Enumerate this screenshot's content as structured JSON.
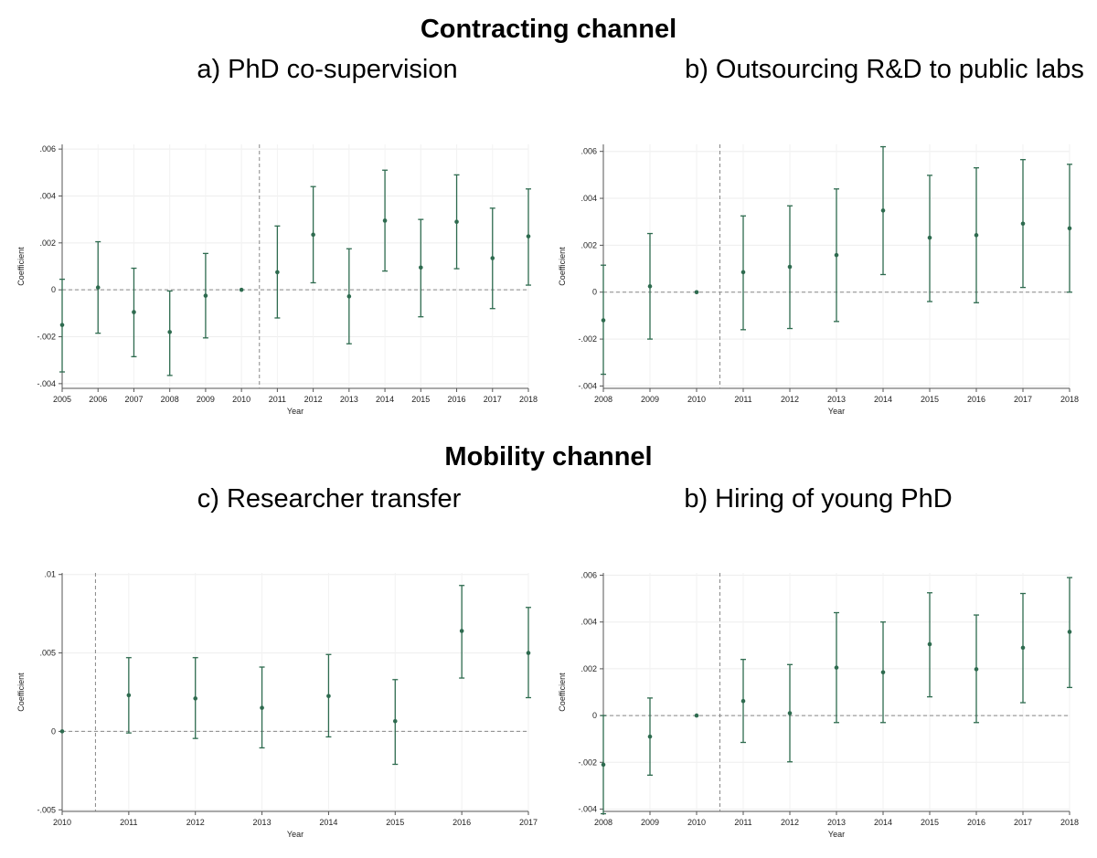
{
  "figure": {
    "section_1": "Contracting channel",
    "section_2": "Mobility channel"
  },
  "chart_data": [
    {
      "id": "a",
      "type": "scatter",
      "title": "a) PhD co-supervision",
      "xlabel": "Year",
      "ylabel": "Coefficient",
      "x": [
        2005,
        2006,
        2007,
        2008,
        2009,
        2010,
        2011,
        2012,
        2013,
        2014,
        2015,
        2016,
        2017,
        2018
      ],
      "y": [
        -0.0015,
        0.0001,
        -0.00095,
        -0.0018,
        -0.00025,
        0,
        0.00075,
        0.00235,
        -0.00028,
        0.00295,
        0.00095,
        0.0029,
        0.00135,
        0.00228
      ],
      "ci_low": [
        -0.0035,
        -0.00185,
        -0.00285,
        -0.00365,
        -0.00205,
        0,
        -0.0012,
        0.0003,
        -0.0023,
        0.0008,
        -0.00115,
        0.0009,
        -0.0008,
        0.0002
      ],
      "ci_high": [
        0.00045,
        0.00205,
        0.00092,
        -5e-05,
        0.00155,
        0,
        0.00272,
        0.0044,
        0.00175,
        0.0051,
        0.003,
        0.0049,
        0.00348,
        0.0043
      ],
      "xlim": [
        2005,
        2018
      ],
      "ylim": [
        -0.0042,
        0.0062
      ],
      "yticks": [
        -0.004,
        -0.002,
        0,
        0.002,
        0.004,
        0.006
      ],
      "ytick_labels": [
        "-.004",
        "-.002",
        "0",
        ".002",
        ".004",
        ".006"
      ],
      "xticks": [
        2005,
        2006,
        2007,
        2008,
        2009,
        2010,
        2011,
        2012,
        2013,
        2014,
        2015,
        2016,
        2017,
        2018
      ],
      "xtick_labels": [
        "2005",
        "2006",
        "2007",
        "2008",
        "2009",
        "2010",
        "2011",
        "2012",
        "2013",
        "2014",
        "2015",
        "2016",
        "2017",
        "2018"
      ],
      "vline_x": 2010.5,
      "hline_y": 0,
      "grid": true,
      "marker_color": "#2e6b4f"
    },
    {
      "id": "b",
      "type": "scatter",
      "title": "b) Outsourcing R&D to public labs",
      "xlabel": "Year",
      "ylabel": "Coefficient",
      "x": [
        2008,
        2009,
        2010,
        2011,
        2012,
        2013,
        2014,
        2015,
        2016,
        2017,
        2018
      ],
      "y": [
        -0.0012,
        0.00025,
        0,
        0.00085,
        0.00108,
        0.00158,
        0.00348,
        0.00232,
        0.00243,
        0.00292,
        0.00272
      ],
      "ci_low": [
        -0.0035,
        -0.002,
        0,
        -0.0016,
        -0.00155,
        -0.00125,
        0.00075,
        -0.0004,
        -0.00045,
        0.0002,
        0
      ],
      "ci_high": [
        0.00115,
        0.0025,
        0,
        0.00325,
        0.00368,
        0.0044,
        0.0062,
        0.00498,
        0.0053,
        0.00565,
        0.00545
      ],
      "xlim": [
        2008,
        2018
      ],
      "ylim": [
        -0.0041,
        0.0063
      ],
      "yticks": [
        -0.004,
        -0.002,
        0,
        0.002,
        0.004,
        0.006
      ],
      "ytick_labels": [
        "-.004",
        "-.002",
        "0",
        ".002",
        ".004",
        ".006"
      ],
      "xticks": [
        2008,
        2009,
        2010,
        2011,
        2012,
        2013,
        2014,
        2015,
        2016,
        2017,
        2018
      ],
      "xtick_labels": [
        "2008",
        "2009",
        "2010",
        "2011",
        "2012",
        "2013",
        "2014",
        "2015",
        "2016",
        "2017",
        "2018"
      ],
      "vline_x": 2010.5,
      "hline_y": 0,
      "grid": true,
      "marker_color": "#2e6b4f"
    },
    {
      "id": "c",
      "type": "scatter",
      "title": "c) Researcher transfer",
      "xlabel": "Year",
      "ylabel": "Coefficient",
      "x": [
        2010,
        2011,
        2012,
        2013,
        2014,
        2015,
        2016,
        2017
      ],
      "y": [
        0,
        0.0023,
        0.0021,
        0.0015,
        0.00225,
        0.00065,
        0.0064,
        0.005
      ],
      "ci_low": [
        0,
        -0.0001,
        -0.00045,
        -0.00105,
        -0.00035,
        -0.0021,
        0.0034,
        0.00215
      ],
      "ci_high": [
        0,
        0.0047,
        0.0047,
        0.0041,
        0.0049,
        0.0033,
        0.0093,
        0.0079
      ],
      "xlim": [
        2010,
        2017
      ],
      "ylim": [
        -0.0051,
        0.0101
      ],
      "yticks": [
        -0.005,
        0,
        0.005,
        0.01
      ],
      "ytick_labels": [
        "-.005",
        "0",
        ".005",
        ".01"
      ],
      "xticks": [
        2010,
        2011,
        2012,
        2013,
        2014,
        2015,
        2016,
        2017
      ],
      "xtick_labels": [
        "2010",
        "2011",
        "2012",
        "2013",
        "2014",
        "2015",
        "2016",
        "2017"
      ],
      "vline_x": 2010.5,
      "hline_y": 0,
      "grid": true,
      "marker_color": "#2e6b4f"
    },
    {
      "id": "d",
      "type": "scatter",
      "title": "b) Hiring of young PhD",
      "xlabel": "Year",
      "ylabel": "Coefficient",
      "x": [
        2008,
        2009,
        2010,
        2011,
        2012,
        2013,
        2014,
        2015,
        2016,
        2017,
        2018
      ],
      "y": [
        -0.0021,
        -0.0009,
        0,
        0.00062,
        0.0001,
        0.00205,
        0.00185,
        0.00305,
        0.00198,
        0.0029,
        0.00358
      ],
      "ci_low": [
        -0.0042,
        -0.00255,
        0,
        -0.00115,
        -0.00198,
        -0.0003,
        -0.0003,
        0.0008,
        -0.0003,
        0.00055,
        0.0012
      ],
      "ci_high": [
        0,
        0.00075,
        0,
        0.0024,
        0.00218,
        0.0044,
        0.004,
        0.00525,
        0.0043,
        0.00522,
        0.0059
      ],
      "xlim": [
        2008,
        2018
      ],
      "ylim": [
        -0.0041,
        0.0061
      ],
      "yticks": [
        -0.004,
        -0.002,
        0,
        0.002,
        0.004,
        0.006
      ],
      "ytick_labels": [
        "-.004",
        "-.002",
        "0",
        ".002",
        ".004",
        ".006"
      ],
      "xticks": [
        2008,
        2009,
        2010,
        2011,
        2012,
        2013,
        2014,
        2015,
        2016,
        2017,
        2018
      ],
      "xtick_labels": [
        "2008",
        "2009",
        "2010",
        "2011",
        "2012",
        "2013",
        "2014",
        "2015",
        "2016",
        "2017",
        "2018"
      ],
      "vline_x": 2010.5,
      "hline_y": 0,
      "grid": true,
      "marker_color": "#2e6b4f"
    }
  ]
}
